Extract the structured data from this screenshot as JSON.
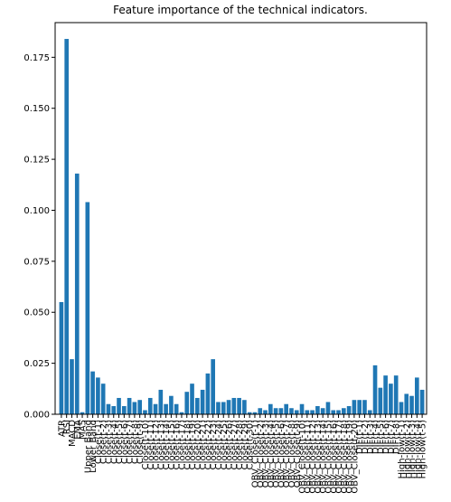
{
  "chart_data": {
    "type": "bar",
    "title": "Feature importance of the technical indicators.",
    "categories": [
      "ATR",
      "RSI",
      "MACD",
      "EMA",
      "MA5",
      "Upper Band",
      "Lower Band",
      "Close(t-1)",
      "Close(t-2)",
      "Close(t-3)",
      "Close(t-4)",
      "Close(t-5)",
      "Close(t-6)",
      "Close(t-7)",
      "Close(t-8)",
      "Close(t-9)",
      "Close(t-10)",
      "Close(t-11)",
      "Close(t-12)",
      "Close(t-13)",
      "Close(t-14)",
      "Close(t-15)",
      "Close(t-16)",
      "Close(t-17)",
      "Close(t-18)",
      "Close(t-19)",
      "Close(t-20)",
      "Close(t-21)",
      "Close(t-22)",
      "Close(t-23)",
      "Close(t-24)",
      "Close(t-25)",
      "Close(t-26)",
      "Close(t-27)",
      "Close(t-28)",
      "Close(t-29)",
      "Close(t-30)",
      "OBV_Close(t-1)",
      "OBV_Close(t-2)",
      "OBV_Close(t-3)",
      "OBV_Close(t-4)",
      "OBV_Close(t-5)",
      "OBV_Close(t-6)",
      "OBV_Close(t-7)",
      "OBV_Close(t-8)",
      "OBV_Close(t-9)",
      "OBV_Close(t-10)",
      "OBV_Close(t-11)",
      "OBV_Close(t-12)",
      "OBV_Close(t-13)",
      "OBV_Close(t-14)",
      "OBV_Close(t-15)",
      "OBV_Close(t-16)",
      "OBV_Close(t-17)",
      "OBV_Close(t-18)",
      "OBV_Close(t-19)",
      "OBV_Close(t-20)",
      "DIF(t-1)",
      "DIF(t-2)",
      "DIF(t-3)",
      "DIF(t-4)",
      "DIF(t-5)",
      "DIF(t-6)",
      "DIF(t-7)",
      "DIF(t-8)",
      "High-low(t-1)",
      "High-low(t-2)",
      "High-low(t-3)",
      "High-low(t-4)",
      "High-low(t-5)"
    ],
    "values": [
      0.055,
      0.184,
      0.027,
      0.118,
      0.001,
      0.104,
      0.021,
      0.018,
      0.015,
      0.005,
      0.004,
      0.008,
      0.004,
      0.008,
      0.006,
      0.007,
      0.002,
      0.008,
      0.005,
      0.012,
      0.005,
      0.009,
      0.005,
      0.001,
      0.011,
      0.015,
      0.008,
      0.012,
      0.02,
      0.027,
      0.006,
      0.006,
      0.007,
      0.008,
      0.008,
      0.007,
      0.001,
      0.001,
      0.003,
      0.002,
      0.005,
      0.003,
      0.003,
      0.005,
      0.003,
      0.002,
      0.005,
      0.002,
      0.002,
      0.004,
      0.003,
      0.006,
      0.002,
      0.002,
      0.003,
      0.004,
      0.007,
      0.007,
      0.007,
      0.002,
      0.024,
      0.013,
      0.019,
      0.015,
      0.019,
      0.006,
      0.01,
      0.009,
      0.018,
      0.012
    ],
    "color": "#1f77b4",
    "ylim": [
      0,
      0.192
    ],
    "yticks": [
      {
        "value": 0,
        "label": "0.000"
      },
      {
        "value": 0.025,
        "label": "0.025"
      },
      {
        "value": 0.05,
        "label": "0.050"
      },
      {
        "value": 0.075,
        "label": "0.075"
      },
      {
        "value": 0.1,
        "label": "0.100"
      },
      {
        "value": 0.125,
        "label": "0.125"
      },
      {
        "value": 0.15,
        "label": "0.150"
      },
      {
        "value": 0.175,
        "label": "0.175"
      }
    ]
  }
}
